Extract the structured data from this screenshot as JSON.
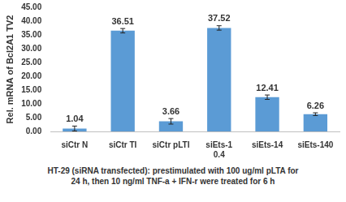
{
  "chart_data": {
    "type": "bar",
    "y_label": "Rel. mRNA of Bcl2A1 TV2",
    "categories": [
      "siCtr N",
      "siCtr TI",
      "siCtr pLTI",
      [
        "siEts-1",
        "0.4"
      ],
      "siEts-14",
      "siEts-140"
    ],
    "values": [
      1.04,
      36.51,
      3.66,
      37.52,
      12.41,
      6.26
    ],
    "errors": [
      0.9,
      0.8,
      1.0,
      0.8,
      0.8,
      0.5
    ],
    "color": "#5b9bd5",
    "ylim": [
      0,
      45
    ],
    "yticks": [
      {
        "value": 0,
        "label": "0.00"
      },
      {
        "value": 5,
        "label": "5.00"
      },
      {
        "value": 10,
        "label": "10.00"
      },
      {
        "value": 15,
        "label": "15.00"
      },
      {
        "value": 20,
        "label": "20.00"
      },
      {
        "value": 25,
        "label": "25.00"
      },
      {
        "value": 30,
        "label": "30.00"
      },
      {
        "value": 35,
        "label": "35.00"
      },
      {
        "value": 40,
        "label": "40.00"
      },
      {
        "value": 45,
        "label": "45.00"
      }
    ],
    "grid": false,
    "data_labels": true,
    "annotations": [
      "HT-29 (siRNA transfected): prestimulated with 100 ug/ml pLTA for",
      "24 h, then 10 ng/ml TNF-a + IFN-r were treated for 6 h"
    ]
  }
}
